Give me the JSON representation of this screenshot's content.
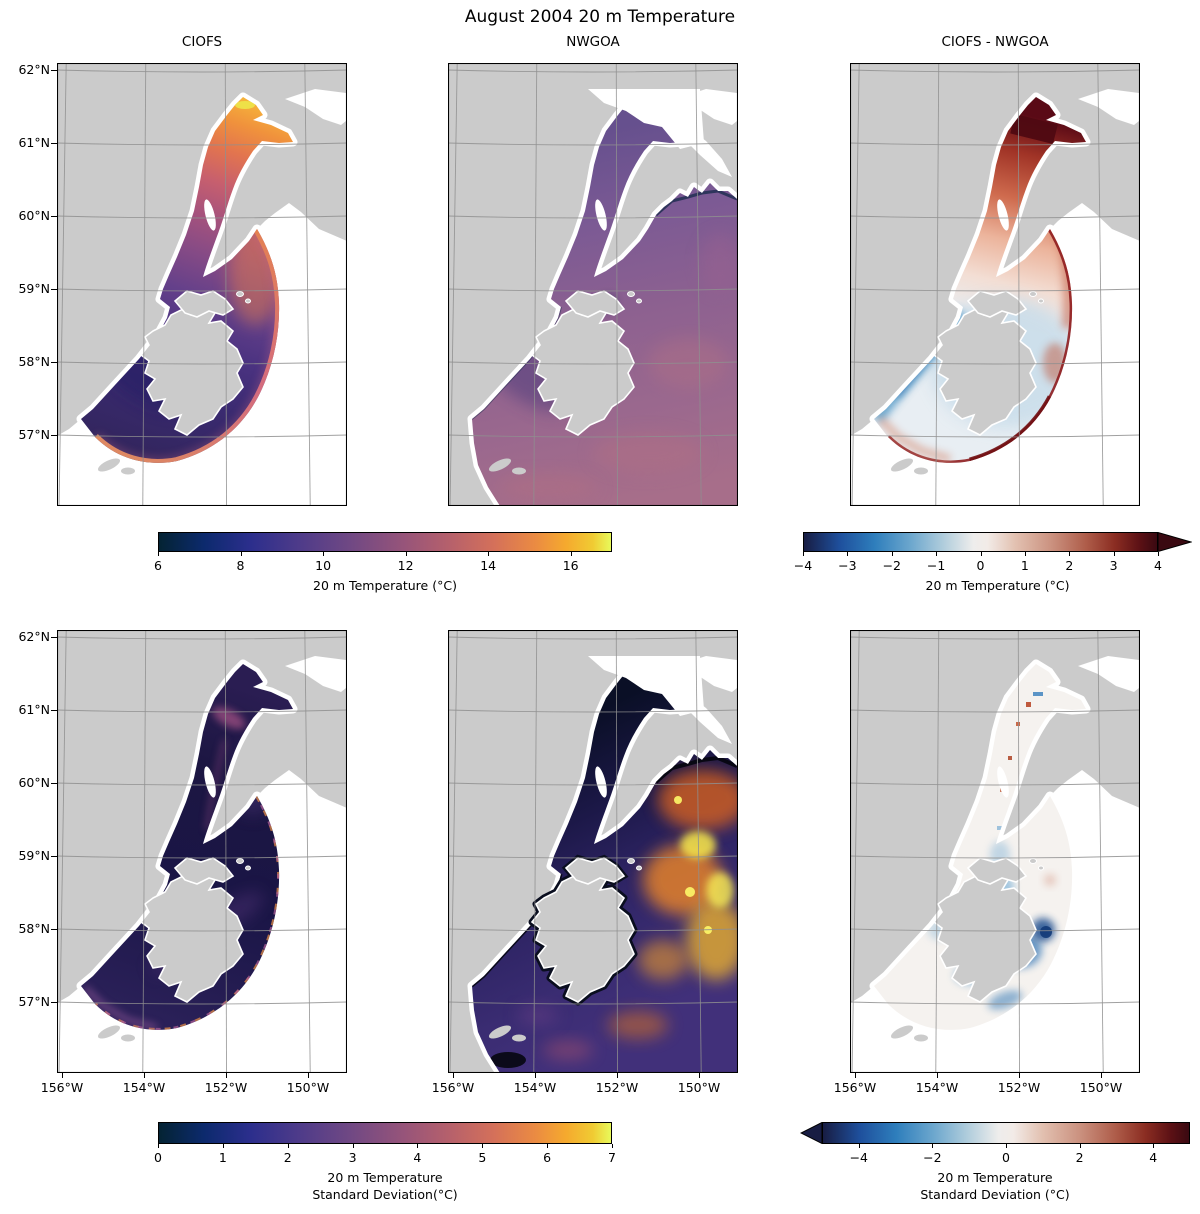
{
  "figure": {
    "title": "August 2004 20 m Temperature",
    "background": "#ffffff"
  },
  "colors": {
    "land": "#cbcbcb",
    "grid": "#8f8f8f",
    "border": "#000000",
    "no_data": "#ffffff",
    "cmaps": {
      "thermal": [
        [
          0,
          "#042333"
        ],
        [
          0.1,
          "#0c2a6d"
        ],
        [
          0.2,
          "#2b2e8c"
        ],
        [
          0.3,
          "#4b3a8a"
        ],
        [
          0.42,
          "#6f4884"
        ],
        [
          0.54,
          "#96547a"
        ],
        [
          0.64,
          "#b5606c"
        ],
        [
          0.74,
          "#d4705a"
        ],
        [
          0.83,
          "#ea8a43"
        ],
        [
          0.9,
          "#f5a92e"
        ],
        [
          0.96,
          "#f0cb33"
        ],
        [
          1,
          "#e8fa5b"
        ]
      ],
      "balance": [
        [
          0,
          "#181d43"
        ],
        [
          0.1,
          "#1e4f9c"
        ],
        [
          0.2,
          "#2e7ebc"
        ],
        [
          0.3,
          "#6ba6cd"
        ],
        [
          0.4,
          "#b4cfdd"
        ],
        [
          0.48,
          "#eeedec"
        ],
        [
          0.52,
          "#f2ebe7"
        ],
        [
          0.6,
          "#e2c0b0"
        ],
        [
          0.7,
          "#cb9280"
        ],
        [
          0.8,
          "#ae5c49"
        ],
        [
          0.88,
          "#8b2d22"
        ],
        [
          0.95,
          "#5c1115"
        ],
        [
          1,
          "#3a0911"
        ]
      ]
    }
  },
  "panels": [
    {
      "id": "ciofs-temp",
      "title": "CIOFS",
      "row": 0,
      "col": 0,
      "field": "temp_ciofs"
    },
    {
      "id": "nwgoa-temp",
      "title": "NWGOA",
      "row": 0,
      "col": 1,
      "field": "temp_nwgoa"
    },
    {
      "id": "diff-temp",
      "title": "CIOFS - NWGOA",
      "row": 0,
      "col": 2,
      "field": "temp_diff"
    },
    {
      "id": "ciofs-std",
      "title": "",
      "row": 1,
      "col": 0,
      "field": "std_ciofs"
    },
    {
      "id": "nwgoa-std",
      "title": "",
      "row": 1,
      "col": 1,
      "field": "std_nwgoa"
    },
    {
      "id": "diff-std",
      "title": "",
      "row": 1,
      "col": 2,
      "field": "std_diff"
    }
  ],
  "axes": {
    "lat_ticks": [
      "62°N",
      "61°N",
      "60°N",
      "59°N",
      "58°N",
      "57°N"
    ],
    "lon_ticks": [
      "156°W",
      "154°W",
      "152°W",
      "150°W"
    ]
  },
  "colorbars": [
    {
      "id": "cb-temp",
      "cmap": "thermal",
      "vmin": 6,
      "vmax": 17,
      "extend": "none",
      "label": "20 m Temperature (°C)",
      "ticks": [
        {
          "value": 6,
          "label": "6"
        },
        {
          "value": 8,
          "label": "8"
        },
        {
          "value": 10,
          "label": "10"
        },
        {
          "value": 12,
          "label": "12"
        },
        {
          "value": 14,
          "label": "14"
        },
        {
          "value": 16,
          "label": "16"
        }
      ]
    },
    {
      "id": "cb-temp-diff",
      "cmap": "balance",
      "vmin": -4,
      "vmax": 4,
      "extend": "max",
      "label": "20 m Temperature (°C)",
      "ticks": [
        {
          "value": -4,
          "label": "−4"
        },
        {
          "value": -3,
          "label": "−3"
        },
        {
          "value": -2,
          "label": "−2"
        },
        {
          "value": -1,
          "label": "−1"
        },
        {
          "value": 0,
          "label": "0"
        },
        {
          "value": 1,
          "label": "1"
        },
        {
          "value": 2,
          "label": "2"
        },
        {
          "value": 3,
          "label": "3"
        },
        {
          "value": 4,
          "label": "4"
        }
      ]
    },
    {
      "id": "cb-std",
      "cmap": "thermal",
      "vmin": 0,
      "vmax": 7,
      "extend": "none",
      "label_lines": [
        "20 m Temperature",
        "Standard Deviation(°C)"
      ],
      "ticks": [
        {
          "value": 0,
          "label": "0"
        },
        {
          "value": 1,
          "label": "1"
        },
        {
          "value": 2,
          "label": "2"
        },
        {
          "value": 3,
          "label": "3"
        },
        {
          "value": 4,
          "label": "4"
        },
        {
          "value": 5,
          "label": "5"
        },
        {
          "value": 6,
          "label": "6"
        },
        {
          "value": 7,
          "label": "7"
        }
      ]
    },
    {
      "id": "cb-std-diff",
      "cmap": "balance",
      "vmin": -5,
      "vmax": 5,
      "extend": "min",
      "label_lines": [
        "20 m Temperature",
        "Standard Deviation (°C)"
      ],
      "ticks": [
        {
          "value": -4,
          "label": "−4"
        },
        {
          "value": -2,
          "label": "−2"
        },
        {
          "value": 0,
          "label": "0"
        },
        {
          "value": 2,
          "label": "2"
        },
        {
          "value": 4,
          "label": "4"
        }
      ]
    }
  ],
  "chart_data": {
    "type": "heatmap",
    "title": "August 2004 20 m Temperature",
    "layout": "2 rows × 3 columns of geographic map panels (Cook Inlet / Gulf of Alaska), shared lat/lon axes",
    "x_ticks": [
      "156°W",
      "154°W",
      "152°W",
      "150°W"
    ],
    "y_ticks": [
      "62°N",
      "61°N",
      "60°N",
      "59°N",
      "58°N",
      "57°N"
    ],
    "panels": [
      {
        "title": "CIOFS",
        "row": 1,
        "variable": "20 m Temperature (°C)",
        "range": [
          6,
          17
        ],
        "readings": {
          "upper_inlet_61N": "14-17",
          "mid_inlet_60.5N": "11-13",
          "lower_inlet_60N": "9-11",
          "shelikof_strait": "7-8.5",
          "open_boundary_rim": "12-14",
          "outside_model_domain": "no data (white)"
        }
      },
      {
        "title": "NWGOA",
        "row": 1,
        "variable": "20 m Temperature (°C)",
        "range": [
          6,
          17
        ],
        "readings": {
          "inlet": "9-10.5",
          "gulf_of_alaska": "10-11.5",
          "nearshore_fjords": "6-7"
        }
      },
      {
        "title": "CIOFS - NWGOA",
        "row": 1,
        "variable": "20 m Temperature difference (°C)",
        "range": [
          -4,
          4
        ],
        "extend": "max",
        "readings": {
          "upper_inlet": "+2 to +4",
          "central_bay_shelikof": "-0.5 to -2.5",
          "domain_boundary_rim": "+2 to +4",
          "eastern_edge": "+1 to +3"
        }
      },
      {
        "title": "CIOFS (std)",
        "row": 2,
        "variable": "20 m Temperature Standard Deviation (°C)",
        "range": [
          0,
          7
        ],
        "readings": {
          "most_of_domain": "0-1.5",
          "frontal_bands_and_rim": "2-4"
        }
      },
      {
        "title": "NWGOA (std)",
        "row": 2,
        "variable": "20 m Temperature Standard Deviation (°C)",
        "range": [
          0,
          7
        ],
        "readings": {
          "nearshore": "0-0.5",
          "shelf": "1-3",
          "offshore_eddies": "4-7"
        }
      },
      {
        "title": "CIOFS - NWGOA (std)",
        "row": 2,
        "variable": "Standard deviation difference (°C)",
        "range": [
          -5,
          5
        ],
        "extend": "min",
        "readings": {
          "bay_interior": "-1 to -5",
          "upper_inlet_spots": "+1 to +2",
          "most_of_inlet": "-0.5 to +0.5"
        }
      }
    ],
    "colorbars": [
      {
        "label": "20 m Temperature (°C)",
        "cmap": "thermal",
        "range": [
          6,
          17
        ],
        "ticks": [
          6,
          8,
          10,
          12,
          14,
          16
        ]
      },
      {
        "label": "20 m Temperature (°C)",
        "cmap": "balance",
        "range": [
          -4,
          4
        ],
        "ticks": [
          -4,
          -3,
          -2,
          -1,
          0,
          1,
          2,
          3,
          4
        ],
        "extend": "max"
      },
      {
        "label": "20 m Temperature Standard Deviation(°C)",
        "cmap": "thermal",
        "range": [
          0,
          7
        ],
        "ticks": [
          0,
          1,
          2,
          3,
          4,
          5,
          6,
          7
        ]
      },
      {
        "label": "20 m Temperature Standard Deviation (°C)",
        "cmap": "balance",
        "range": [
          -5,
          5
        ],
        "ticks": [
          -4,
          -2,
          0,
          2,
          4
        ],
        "extend": "min"
      }
    ]
  }
}
